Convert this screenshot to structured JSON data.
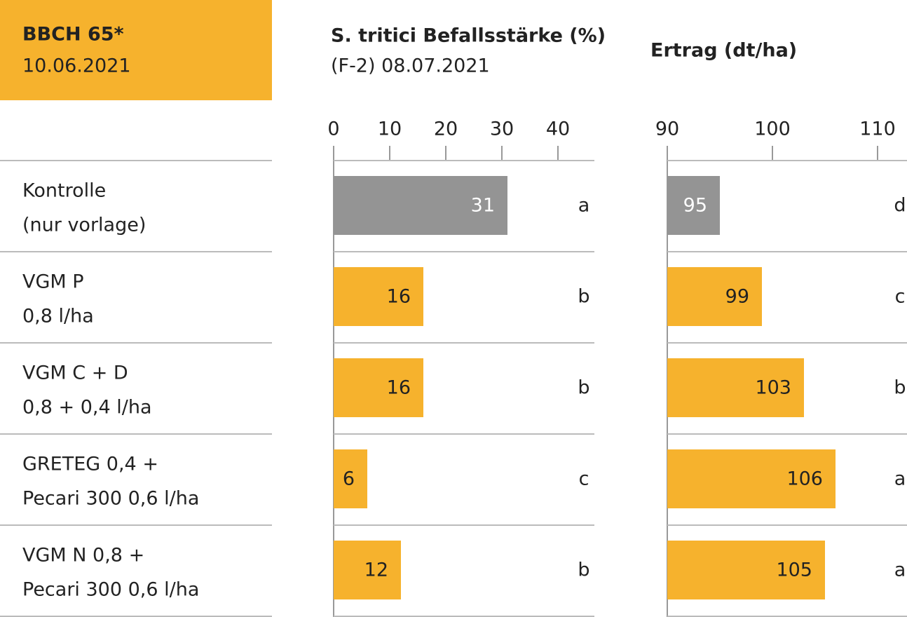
{
  "header": {
    "title": "BBCH 65*",
    "date": "10.06.2021"
  },
  "row_labels": [
    [
      "Kontrolle",
      "(nur vorlage)"
    ],
    [
      "VGM P",
      "0,8 l/ha"
    ],
    [
      "VGM C + D",
      "0,8 + 0,4 l/ha"
    ],
    [
      "GRETEG 0,4 +",
      "Pecari 300 0,6 l/ha"
    ],
    [
      "VGM N 0,8 +",
      "Pecari 300 0,6 l/ha"
    ]
  ],
  "chart_data": [
    {
      "type": "bar",
      "orientation": "horizontal",
      "title": "S. tritici Befallsstärke (%)",
      "subtitle": "(F-2) 08.07.2021",
      "values": [
        31,
        16,
        16,
        6,
        12
      ],
      "colors": [
        "#949494",
        "#f6b22d",
        "#f6b22d",
        "#f6b22d",
        "#f6b22d"
      ],
      "significance": [
        "a",
        "b",
        "b",
        "c",
        "b"
      ],
      "xlim": [
        0,
        46.5
      ],
      "xticks": [
        0,
        10,
        20,
        30,
        40
      ]
    },
    {
      "type": "bar",
      "orientation": "horizontal",
      "title": "Ertrag (dt/ha)",
      "values": [
        95,
        99,
        103,
        106,
        105
      ],
      "colors": [
        "#949494",
        "#f6b22d",
        "#f6b22d",
        "#f6b22d",
        "#f6b22d"
      ],
      "significance": [
        "d",
        "c",
        "b",
        "a",
        "a"
      ],
      "xlim": [
        90,
        112.8
      ],
      "xticks": [
        90,
        100,
        110
      ]
    }
  ]
}
